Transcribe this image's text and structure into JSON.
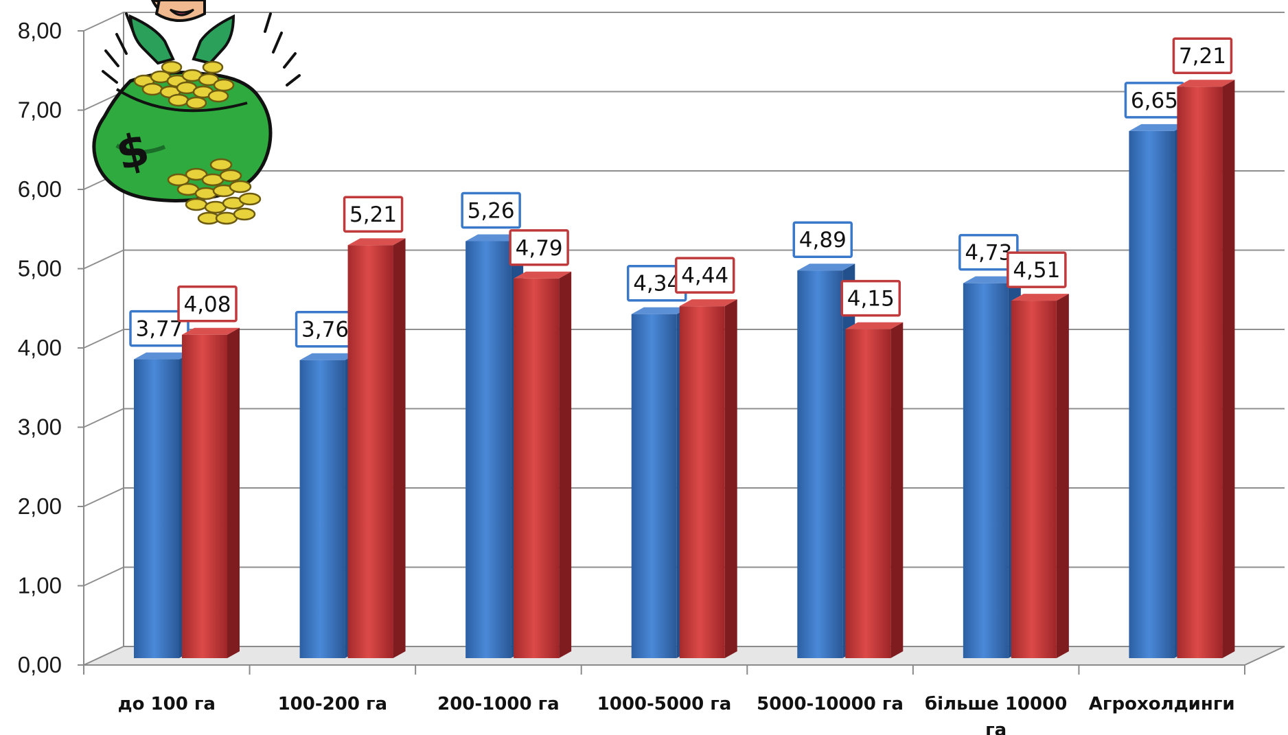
{
  "chart_data": {
    "type": "bar",
    "categories": [
      "до 100 га",
      "100-200 га",
      "200-1000 га",
      "1000-5000 га",
      "5000-10000 га",
      "більше 10000 га",
      "Агрохолдинги"
    ],
    "series": [
      {
        "values": [
          3.77,
          3.76,
          5.26,
          4.34,
          4.89,
          4.73,
          6.65
        ],
        "labels": [
          "3,77",
          "3,76",
          "5,26",
          "4,34",
          "4,89",
          "4,73",
          "6,65"
        ],
        "color": "#3A78C9"
      },
      {
        "values": [
          4.08,
          5.21,
          4.79,
          4.44,
          4.15,
          4.51,
          7.21
        ],
        "labels": [
          "4,08",
          "5,21",
          "4,79",
          "4,44",
          "4,15",
          "4,51",
          "7,21"
        ],
        "color": "#C8363A"
      }
    ],
    "ylim": [
      0,
      8
    ],
    "yticks": [
      "0,00",
      "1,00",
      "2,00",
      "3,00",
      "4,00",
      "5,00",
      "6,00",
      "7,00",
      "8,00"
    ],
    "grid": true,
    "legend": "none",
    "style": "3d-column"
  },
  "illustration": {
    "icon": "money-bag-icon"
  }
}
